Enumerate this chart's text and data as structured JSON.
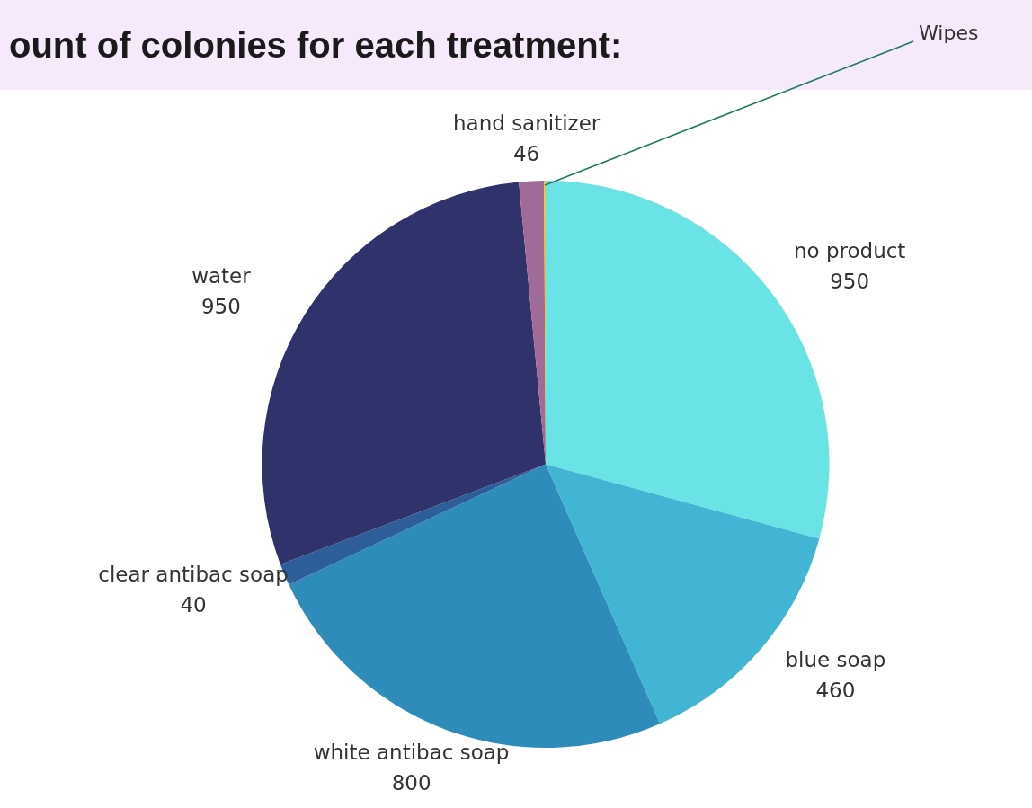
{
  "chart_data": {
    "type": "pie",
    "title": "ount of colonies for each treatment:",
    "categories": [
      "no product",
      "blue soap",
      "white antibac soap",
      "clear antibac soap",
      "water",
      "hand sanitizer",
      "Wipes"
    ],
    "values": [
      950,
      460,
      800,
      40,
      950,
      46,
      3
    ],
    "value_labels": [
      "950",
      "460",
      "800",
      "40",
      "950",
      "46",
      null
    ],
    "colors": [
      "#6ae3e6",
      "#42b5d4",
      "#2e8cbb",
      "#2e5e99",
      "#30336b",
      "#a06b98",
      "#f0c419"
    ],
    "legend": false
  }
}
